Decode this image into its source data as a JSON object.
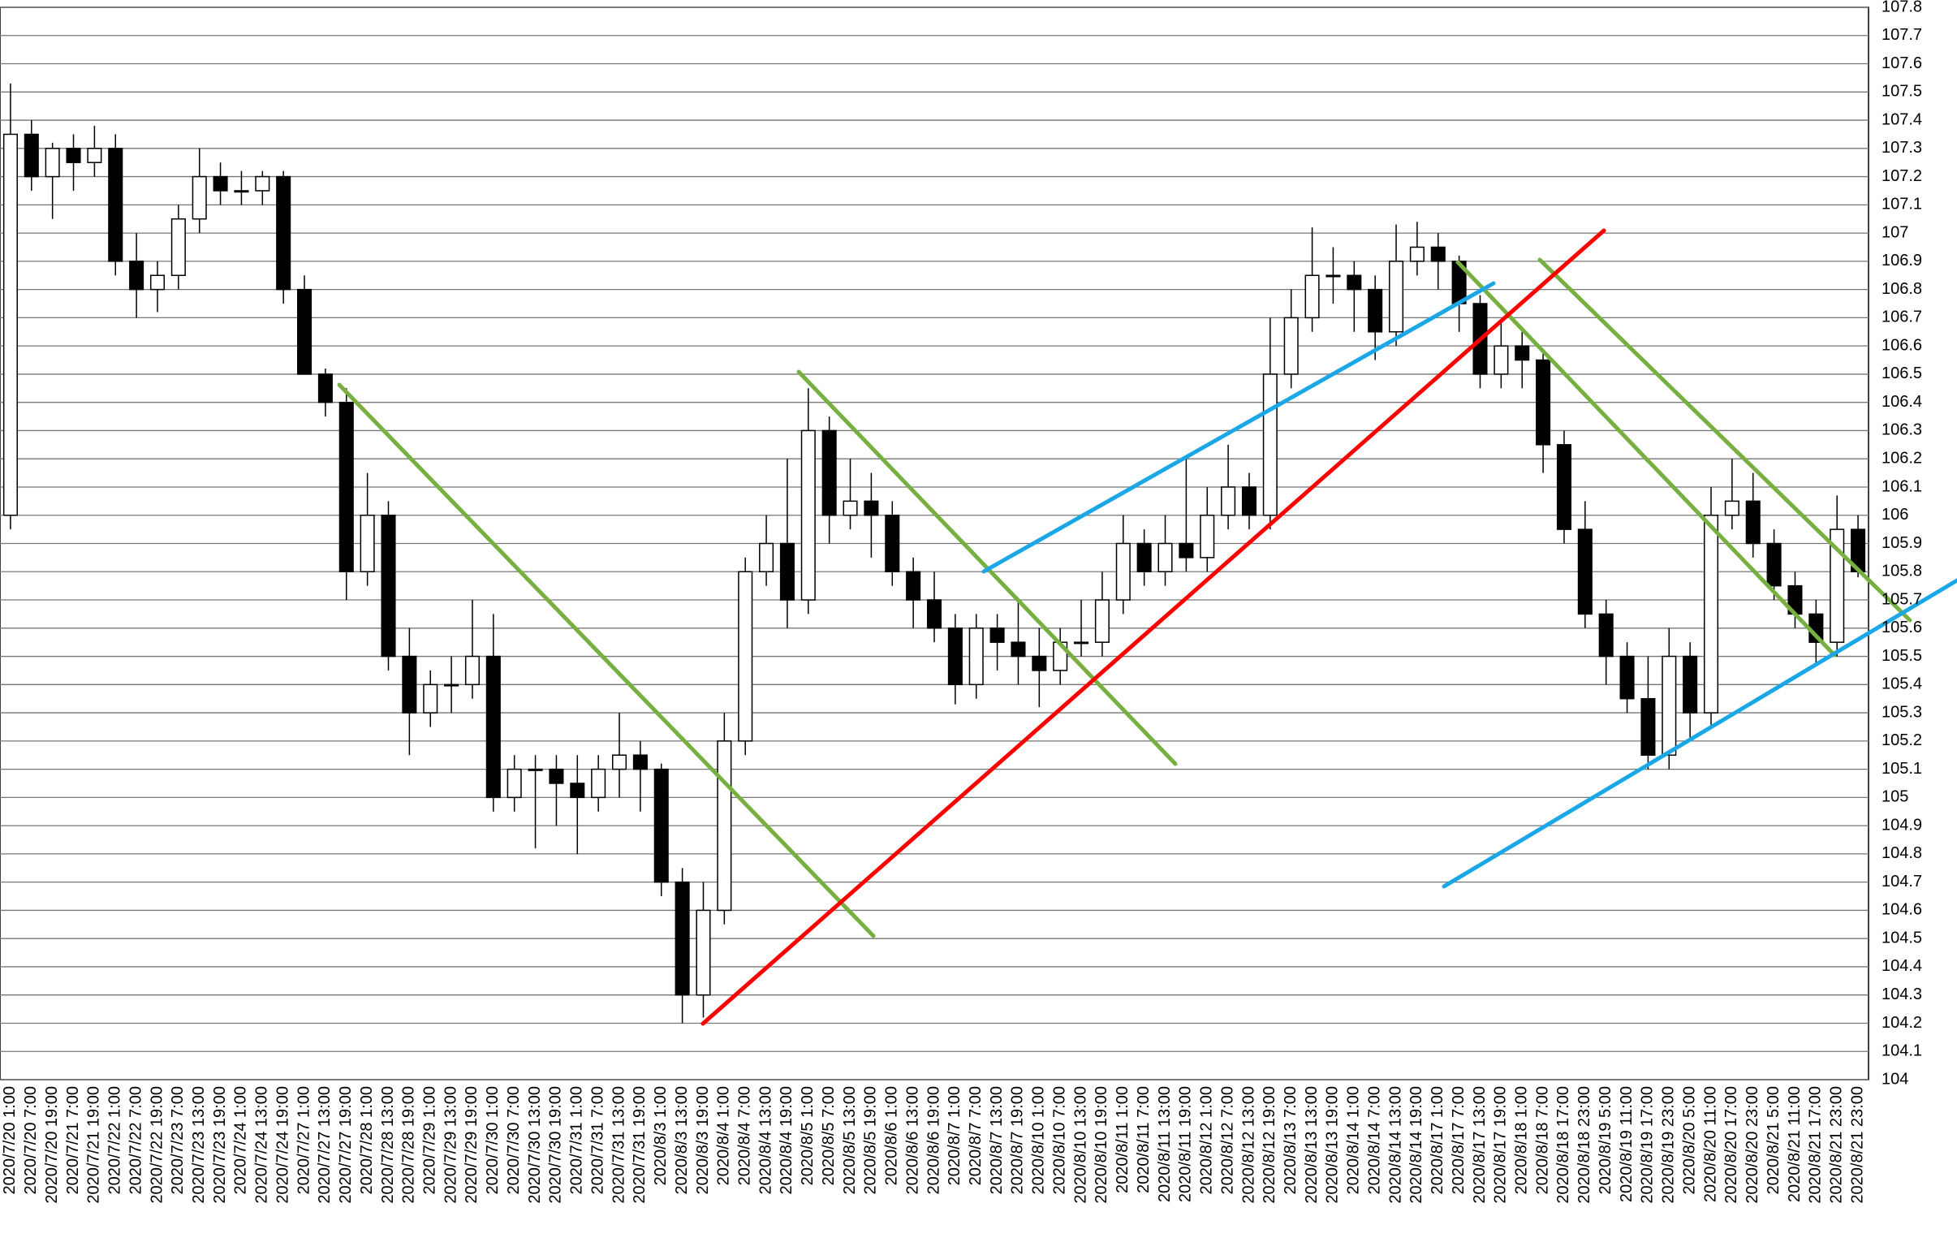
{
  "chart_data": {
    "type": "candlestick",
    "categories": [
      "2020/7/20 1:00",
      "2020/7/20 7:00",
      "2020/7/20 19:00",
      "2020/7/21 7:00",
      "2020/7/21 19:00",
      "2020/7/22 1:00",
      "2020/7/22 7:00",
      "2020/7/22 19:00",
      "2020/7/23 7:00",
      "2020/7/23 13:00",
      "2020/7/23 19:00",
      "2020/7/24 1:00",
      "2020/7/24 13:00",
      "2020/7/24 19:00",
      "2020/7/27 1:00",
      "2020/7/27 13:00",
      "2020/7/27 19:00",
      "2020/7/28 1:00",
      "2020/7/28 13:00",
      "2020/7/28 19:00",
      "2020/7/29 1:00",
      "2020/7/29 13:00",
      "2020/7/29 19:00",
      "2020/7/30 1:00",
      "2020/7/30 7:00",
      "2020/7/30 13:00",
      "2020/7/30 19:00",
      "2020/7/31 1:00",
      "2020/7/31 7:00",
      "2020/7/31 13:00",
      "2020/7/31 19:00",
      "2020/8/3 1:00",
      "2020/8/3 13:00",
      "2020/8/3 19:00",
      "2020/8/4 1:00",
      "2020/8/4 7:00",
      "2020/8/4 13:00",
      "2020/8/4 19:00",
      "2020/8/5 1:00",
      "2020/8/5 7:00",
      "2020/8/5 13:00",
      "2020/8/5 19:00",
      "2020/8/6 1:00",
      "2020/8/6 13:00",
      "2020/8/6 19:00",
      "2020/8/7 1:00",
      "2020/8/7 7:00",
      "2020/8/7 13:00",
      "2020/8/7 19:00",
      "2020/8/10 1:00",
      "2020/8/10 7:00",
      "2020/8/10 13:00",
      "2020/8/10 19:00",
      "2020/8/11 1:00",
      "2020/8/11 7:00",
      "2020/8/11 13:00",
      "2020/8/11 19:00",
      "2020/8/12 1:00",
      "2020/8/12 7:00",
      "2020/8/12 13:00",
      "2020/8/12 19:00",
      "2020/8/13 7:00",
      "2020/8/13 13:00",
      "2020/8/13 19:00",
      "2020/8/14 1:00",
      "2020/8/14 7:00",
      "2020/8/14 13:00",
      "2020/8/14 19:00",
      "2020/8/17 1:00",
      "2020/8/17 7:00",
      "2020/8/17 13:00",
      "2020/8/17 19:00",
      "2020/8/18 1:00",
      "2020/8/18 7:00",
      "2020/8/18 17:00",
      "2020/8/18 23:00",
      "2020/8/19 5:00",
      "2020/8/19 11:00",
      "2020/8/19 17:00",
      "2020/8/19 23:00",
      "2020/8/20 5:00",
      "2020/8/20 11:00",
      "2020/8/20 17:00",
      "2020/8/20 23:00",
      "2020/8/21 5:00",
      "2020/8/21 11:00",
      "2020/8/21 17:00",
      "2020/8/21 23:00",
      "2020/8/21 23:00"
    ],
    "open": [
      106.0,
      107.35,
      107.2,
      107.3,
      107.25,
      107.3,
      106.9,
      106.8,
      106.85,
      107.05,
      107.2,
      107.15,
      107.15,
      107.2,
      106.8,
      106.5,
      106.4,
      105.8,
      106.0,
      105.5,
      105.3,
      105.4,
      105.4,
      105.5,
      105.0,
      105.1,
      105.1,
      105.05,
      105.0,
      105.1,
      105.15,
      105.1,
      104.7,
      104.3,
      104.6,
      105.2,
      105.8,
      105.9,
      105.7,
      106.3,
      106.0,
      106.05,
      106.0,
      105.8,
      105.7,
      105.6,
      105.4,
      105.6,
      105.55,
      105.5,
      105.45,
      105.55,
      105.55,
      105.7,
      105.9,
      105.8,
      105.9,
      105.85,
      106.0,
      106.1,
      106.0,
      106.5,
      106.7,
      106.85,
      106.85,
      106.8,
      106.65,
      106.9,
      106.95,
      106.9,
      106.75,
      106.5,
      106.6,
      106.55,
      106.25,
      105.95,
      105.65,
      105.5,
      105.35,
      105.15,
      105.5,
      105.3,
      106.0,
      106.05,
      105.9,
      105.75,
      105.65,
      105.55,
      105.95
    ],
    "high": [
      107.53,
      107.4,
      107.32,
      107.35,
      107.38,
      107.35,
      107.0,
      106.9,
      107.1,
      107.3,
      107.25,
      107.22,
      107.22,
      107.22,
      106.85,
      106.52,
      106.45,
      106.15,
      106.05,
      105.6,
      105.45,
      105.5,
      105.7,
      105.65,
      105.15,
      105.15,
      105.15,
      105.15,
      105.15,
      105.3,
      105.2,
      105.12,
      104.75,
      104.7,
      105.3,
      105.85,
      106.0,
      106.2,
      106.45,
      106.35,
      106.2,
      106.15,
      106.05,
      105.85,
      105.8,
      105.65,
      105.65,
      105.65,
      105.7,
      105.6,
      105.6,
      105.7,
      105.8,
      106.0,
      105.95,
      106.0,
      106.2,
      106.1,
      106.25,
      106.15,
      106.7,
      106.8,
      107.02,
      106.95,
      106.9,
      106.85,
      107.03,
      107.04,
      107.0,
      106.92,
      106.78,
      106.68,
      106.65,
      106.58,
      106.3,
      106.05,
      105.7,
      105.55,
      105.5,
      105.6,
      105.55,
      106.1,
      106.2,
      106.15,
      105.95,
      105.8,
      105.7,
      106.07,
      106.0
    ],
    "low": [
      105.95,
      107.15,
      107.05,
      107.15,
      107.2,
      106.85,
      106.7,
      106.72,
      106.8,
      107.0,
      107.1,
      107.1,
      107.1,
      106.75,
      106.5,
      106.35,
      105.7,
      105.75,
      105.45,
      105.15,
      105.25,
      105.3,
      105.35,
      104.95,
      104.95,
      104.82,
      104.9,
      104.8,
      104.95,
      105.0,
      104.95,
      104.65,
      104.2,
      104.22,
      104.55,
      105.15,
      105.75,
      105.6,
      105.65,
      105.9,
      105.95,
      105.85,
      105.75,
      105.6,
      105.55,
      105.33,
      105.35,
      105.45,
      105.4,
      105.32,
      105.4,
      105.5,
      105.5,
      105.65,
      105.75,
      105.75,
      105.8,
      105.8,
      105.95,
      105.95,
      105.95,
      106.45,
      106.65,
      106.75,
      106.65,
      106.55,
      106.6,
      106.85,
      106.8,
      106.65,
      106.45,
      106.45,
      106.45,
      106.15,
      105.9,
      105.6,
      105.4,
      105.3,
      105.1,
      105.1,
      105.2,
      105.25,
      105.95,
      105.85,
      105.7,
      105.6,
      105.47,
      105.5,
      105.78
    ],
    "close": [
      107.35,
      107.2,
      107.3,
      107.25,
      107.3,
      106.9,
      106.8,
      106.85,
      107.05,
      107.2,
      107.15,
      107.15,
      107.2,
      106.8,
      106.5,
      106.4,
      105.8,
      106.0,
      105.5,
      105.3,
      105.4,
      105.4,
      105.5,
      105.0,
      105.1,
      105.1,
      105.05,
      105.0,
      105.1,
      105.15,
      105.1,
      104.7,
      104.3,
      104.6,
      105.2,
      105.8,
      105.9,
      105.7,
      106.3,
      106.0,
      106.05,
      106.0,
      105.8,
      105.7,
      105.6,
      105.4,
      105.6,
      105.55,
      105.5,
      105.45,
      105.55,
      105.55,
      105.7,
      105.9,
      105.8,
      105.9,
      105.85,
      106.0,
      106.1,
      106.0,
      106.5,
      106.7,
      106.85,
      106.85,
      106.8,
      106.65,
      106.9,
      106.95,
      106.9,
      106.75,
      106.5,
      106.6,
      106.55,
      106.25,
      105.95,
      105.65,
      105.5,
      105.35,
      105.15,
      105.5,
      105.3,
      106.0,
      106.05,
      105.9,
      105.75,
      105.65,
      105.55,
      105.95,
      105.8
    ],
    "up_color": "#ffffff",
    "down_color": "#000000",
    "ylim": [
      104,
      107.8
    ],
    "yticks": [
      104,
      104.1,
      104.2,
      104.3,
      104.4,
      104.5,
      104.6,
      104.7,
      104.8,
      104.9,
      105,
      105.1,
      105.2,
      105.3,
      105.4,
      105.5,
      105.6,
      105.7,
      105.8,
      105.9,
      106,
      106.1,
      106.2,
      106.3,
      106.4,
      106.5,
      106.6,
      106.7,
      106.8,
      106.9,
      107,
      107.1,
      107.2,
      107.3,
      107.4,
      107.5,
      107.6,
      107.7,
      107.8
    ],
    "grid": true
  }
}
